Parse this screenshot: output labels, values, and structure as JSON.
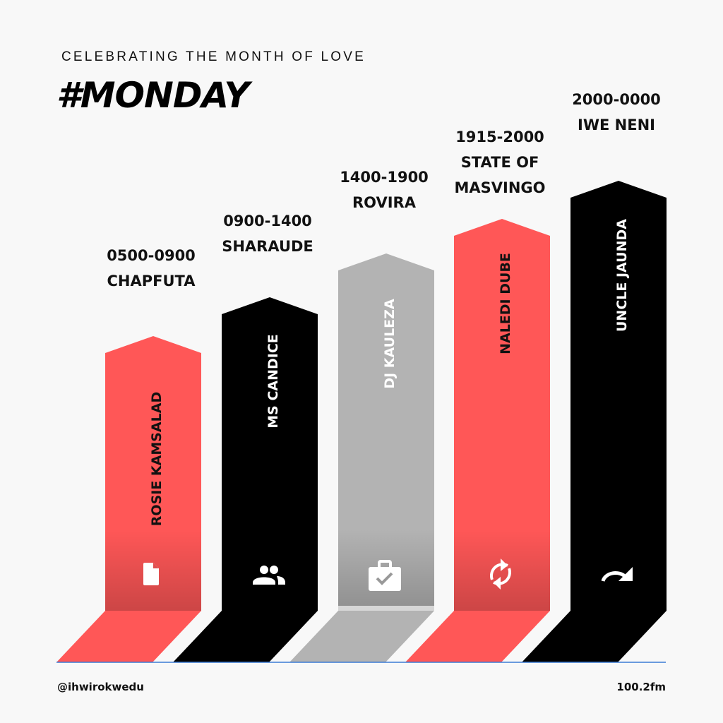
{
  "header": {
    "subtitle": "CELEBRATING THE MONTH OF LOVE",
    "title": "#MONDAY"
  },
  "colors": {
    "red": "#ff5757",
    "black": "#000000",
    "gray": "#b3b3b3",
    "baseline": "#3a7bd5"
  },
  "shows": [
    {
      "time": "0500-0900",
      "show": "CHAPFUTA",
      "presenter": "ROSIE KAMSALAD",
      "color": "#ff5757",
      "text_color": "#111111",
      "icon": "file-icon"
    },
    {
      "time": "0900-1400",
      "show": "SHARAUDE",
      "presenter": "MS CANDICE",
      "color": "#000000",
      "text_color": "#ffffff",
      "icon": "people-icon"
    },
    {
      "time": "1400-1900",
      "show": "ROVIRA",
      "presenter": "DJ KAULEZA",
      "color": "#b3b3b3",
      "text_color": "#ffffff",
      "icon": "briefcase-check-icon"
    },
    {
      "time": "1915-2000",
      "show": "STATE OF MASVINGO",
      "presenter": "NALEDI DUBE",
      "color": "#ff5757",
      "text_color": "#111111",
      "icon": "sync-icon"
    },
    {
      "time": "2000-0000",
      "show": "IWE NENI",
      "presenter": "UNCLE JAUNDA",
      "color": "#000000",
      "text_color": "#ffffff",
      "icon": "redo-arrow-icon"
    }
  ],
  "footer": {
    "handle": "@ihwirokwedu",
    "station": "100.2fm"
  }
}
